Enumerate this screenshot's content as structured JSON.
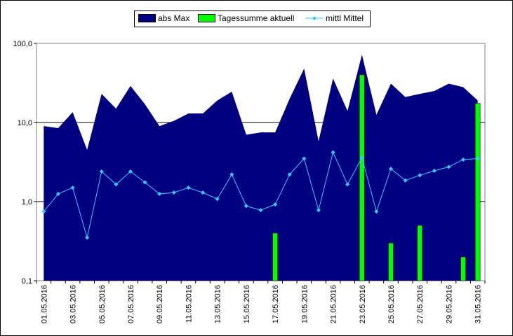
{
  "chart_data": {
    "type": "area",
    "y_scale": "log",
    "ylim": [
      0.1,
      100
    ],
    "y_ticks": [
      "0,1",
      "1,0",
      "10,0",
      "100,0"
    ],
    "grid": "horizontal major lines at decades",
    "legend_position": "top",
    "legend": [
      "abs Max",
      "Tagessumme aktuell",
      "mittl Mittel"
    ],
    "colors": {
      "abs_max": "#000080",
      "tagessumme": "#00ff00",
      "mittel": "#33ccff",
      "plot_bg": "#ffffff"
    },
    "x": [
      "01.05.2016",
      "02.05.2016",
      "03.05.2016",
      "04.05.2016",
      "05.05.2016",
      "06.05.2016",
      "07.05.2016",
      "08.05.2016",
      "09.05.2016",
      "10.05.2016",
      "11.05.2016",
      "12.05.2016",
      "13.05.2016",
      "14.05.2016",
      "15.05.2016",
      "16.05.2016",
      "17.05.2016",
      "18.05.2016",
      "19.05.2016",
      "20.05.2016",
      "21.05.2016",
      "22.05.2016",
      "23.05.2016",
      "24.05.2016",
      "25.05.2016",
      "26.05.2016",
      "27.05.2016",
      "28.05.2016",
      "29.05.2016",
      "30.05.2016",
      "31.05.2016"
    ],
    "x_tick_labels": [
      "01.05.2016",
      "03.05.2016",
      "05.05.2016",
      "07.05.2016",
      "09.05.2016",
      "11.05.2016",
      "13.05.2016",
      "15.05.2016",
      "17.05.2016",
      "19.05.2016",
      "21.05.2016",
      "23.05.2016",
      "25.05.2016",
      "27.05.2016",
      "29.05.2016",
      "31.05.2016"
    ],
    "series": [
      {
        "name": "abs Max",
        "kind": "area",
        "values": [
          9.0,
          8.5,
          13.5,
          4.5,
          23,
          15,
          29,
          17,
          9.0,
          10.5,
          13,
          13,
          19,
          24.5,
          7.0,
          7.5,
          7.5,
          20,
          48,
          5.8,
          36,
          14,
          72,
          12.5,
          31,
          21,
          23,
          25,
          31,
          28,
          19
        ]
      },
      {
        "name": "Tagessumme aktuell",
        "kind": "bar",
        "values": [
          null,
          null,
          null,
          null,
          null,
          null,
          null,
          null,
          null,
          null,
          null,
          null,
          null,
          null,
          null,
          null,
          0.4,
          null,
          null,
          null,
          null,
          null,
          40,
          null,
          0.3,
          null,
          0.5,
          null,
          null,
          0.2,
          17.5
        ]
      },
      {
        "name": "mittl Mittel",
        "kind": "line",
        "values": [
          0.75,
          1.25,
          1.5,
          0.35,
          2.4,
          1.65,
          2.4,
          1.75,
          1.25,
          1.3,
          1.5,
          1.3,
          1.08,
          2.2,
          0.88,
          0.78,
          0.92,
          2.2,
          3.5,
          0.78,
          4.2,
          1.65,
          3.6,
          0.75,
          2.6,
          1.85,
          2.15,
          2.45,
          2.75,
          3.4,
          3.5
        ]
      }
    ]
  }
}
